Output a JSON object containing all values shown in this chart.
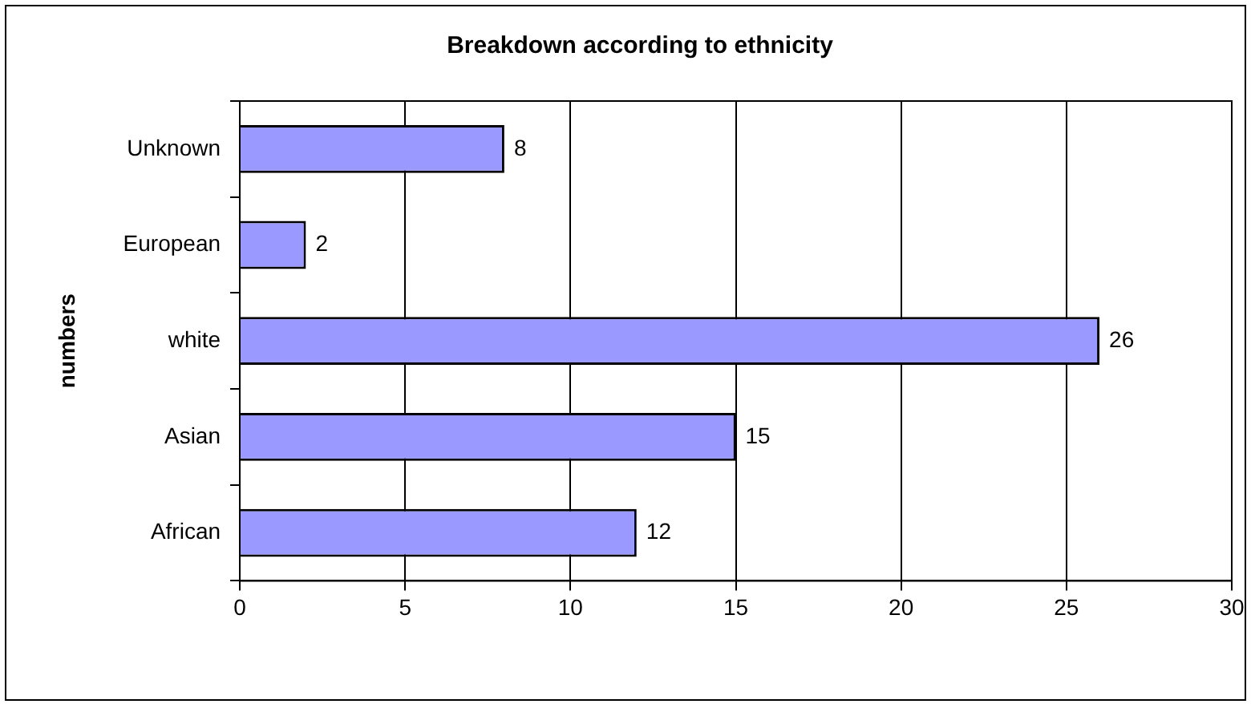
{
  "chart_data": {
    "type": "bar",
    "orientation": "horizontal",
    "title": "Breakdown according to ethnicity",
    "ylabel": "numbers",
    "categories": [
      "Unknown",
      "European",
      "white",
      "Asian",
      "African"
    ],
    "values": [
      8,
      2,
      26,
      15,
      12
    ],
    "color": "#9999ff",
    "xlim": [
      0,
      30
    ],
    "xticks": [
      0,
      5,
      10,
      15,
      20,
      25,
      30
    ],
    "grid": "x",
    "data_labels": true
  }
}
